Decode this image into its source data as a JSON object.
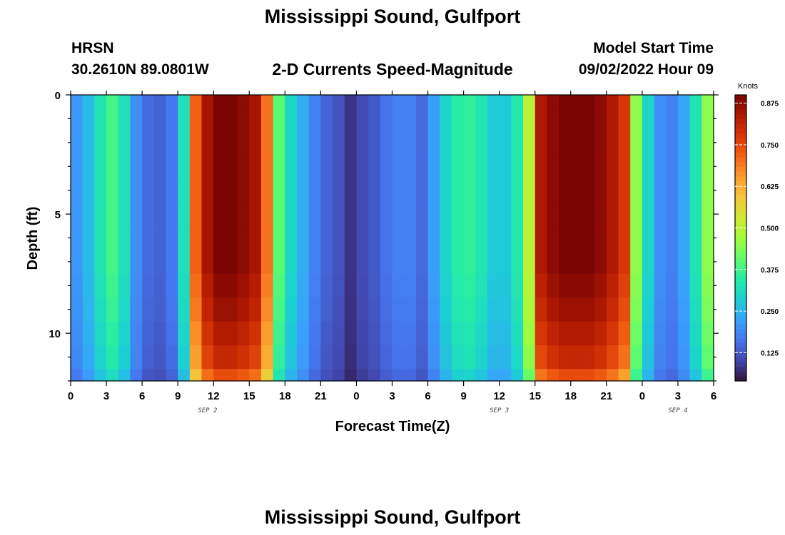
{
  "titles": {
    "main": "Mississippi Sound, Gulfport",
    "repeat": "Mississippi Sound, Gulfport"
  },
  "header": {
    "station_code": "HRSN",
    "coords": "30.2610N  89.0801W",
    "plot_title": "2-D Currents Speed-Magnitude",
    "model_label": "Model Start Time",
    "model_time": "09/02/2022 Hour 09"
  },
  "chart_data": {
    "type": "heatmap",
    "title": "2-D Currents Speed-Magnitude",
    "xlabel": "Forecast Time(Z)",
    "ylabel": "Depth (ft)",
    "x_range_hours": [
      0,
      54
    ],
    "y_range_ft": [
      0,
      12
    ],
    "y_inverted": true,
    "x_ticks": [
      "0",
      "3",
      "6",
      "9",
      "12",
      "15",
      "18",
      "21",
      "0",
      "3",
      "6",
      "9",
      "12",
      "15",
      "18",
      "21",
      "0",
      "3",
      "6"
    ],
    "y_ticks": [
      "0",
      "5",
      "10"
    ],
    "date_labels": [
      {
        "label": "SEP 2",
        "hour": 11.5
      },
      {
        "label": "SEP 3",
        "hour": 36.0
      },
      {
        "label": "SEP 4",
        "hour": 51.0
      }
    ],
    "colorbar": {
      "unit": "Knots",
      "min": 0.04,
      "max": 0.9,
      "ticks": [
        "0.875",
        "0.750",
        "0.625",
        "0.500",
        "0.375",
        "0.250",
        "0.125"
      ],
      "colors": [
        "#30123b",
        "#4145ab",
        "#4675ed",
        "#39a2fc",
        "#1bcfd4",
        "#24eca6",
        "#61fc6c",
        "#a4fc3b",
        "#d1e834",
        "#f3c63a",
        "#fe9b2d",
        "#f36315",
        "#d93806",
        "#b11901",
        "#7a0402"
      ]
    },
    "grid": false,
    "legend_position": "right",
    "n_time_columns": 54,
    "depth_layers_ft": [
      0,
      0.5,
      1.5,
      2.5,
      3.5,
      4.5,
      5.5,
      6.5,
      7.5,
      8.5,
      9.5,
      10.5,
      11.5,
      12
    ],
    "speed_profile_time": [
      0.21,
      0.26,
      0.33,
      0.38,
      0.32,
      0.2,
      0.15,
      0.14,
      0.17,
      0.32,
      0.72,
      0.85,
      0.9,
      0.9,
      0.88,
      0.85,
      0.7,
      0.4,
      0.3,
      0.24,
      0.18,
      0.14,
      0.12,
      0.08,
      0.11,
      0.13,
      0.16,
      0.18,
      0.18,
      0.15,
      0.22,
      0.3,
      0.35,
      0.36,
      0.33,
      0.28,
      0.28,
      0.34,
      0.5,
      0.84,
      0.88,
      0.9,
      0.9,
      0.9,
      0.88,
      0.84,
      0.78,
      0.45,
      0.3,
      0.2,
      0.18,
      0.23,
      0.33,
      0.45
    ],
    "depth_mod": [
      1.0,
      1.0,
      1.0,
      1.0,
      1.0,
      1.0,
      1.0,
      1.0,
      0.98,
      0.96,
      0.93,
      0.9,
      0.83,
      0.7
    ]
  }
}
